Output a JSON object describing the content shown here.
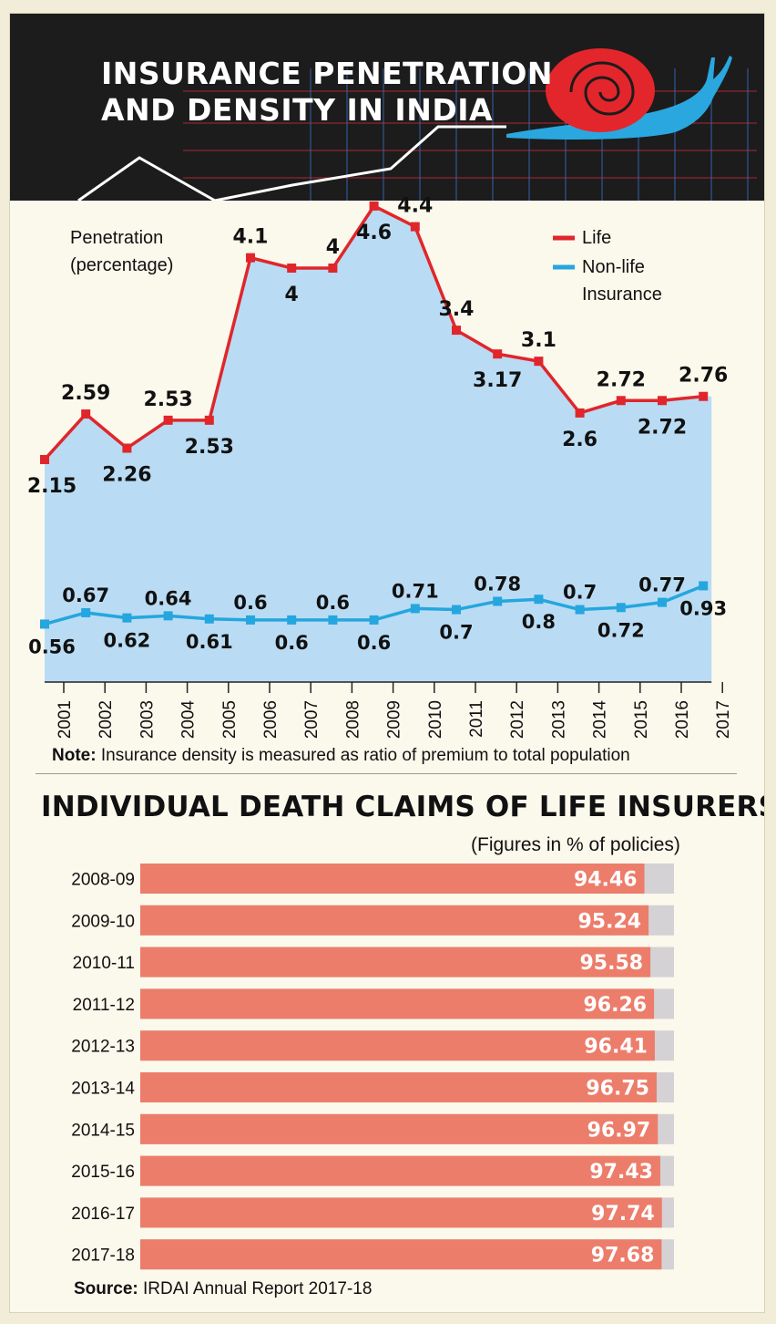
{
  "header": {
    "title_line1": "INSURANCE PENETRATION",
    "title_line2": "AND DENSITY IN INDIA"
  },
  "colors": {
    "life": "#e0262b",
    "nonlife": "#25a6de",
    "area": "#b9dcf4",
    "bar": "#ec7d6a",
    "bar_track": "#d4d2d4",
    "header_bg": "#1c1c1c"
  },
  "chart_data": [
    {
      "type": "line",
      "ylabel": "Penetration (percentage)",
      "legend": [
        "Life",
        "Non-life Insurance"
      ],
      "legend_position": "top-right",
      "x": [
        "2001",
        "2002",
        "2003",
        "2004",
        "2005",
        "2006",
        "2007",
        "2008",
        "2009",
        "2010",
        "2011",
        "2012",
        "2013",
        "2014",
        "2015",
        "2016",
        "2017"
      ],
      "series": [
        {
          "name": "Life",
          "values": [
            2.15,
            2.59,
            2.26,
            2.53,
            2.53,
            4.1,
            4,
            4,
            4.6,
            4.4,
            3.4,
            3.17,
            3.1,
            2.6,
            2.72,
            2.72,
            2.76
          ]
        },
        {
          "name": "Non-life Insurance",
          "values": [
            0.56,
            0.67,
            0.62,
            0.64,
            0.61,
            0.6,
            0.6,
            0.6,
            0.6,
            0.71,
            0.7,
            0.78,
            0.8,
            0.7,
            0.72,
            0.77,
            0.93
          ]
        }
      ],
      "note_label": "Note:",
      "note_text": "Insurance density is measured as ratio of premium to total population"
    },
    {
      "type": "bar",
      "orientation": "horizontal",
      "title": "INDIVIDUAL DEATH CLAIMS OF LIFE INSURERS",
      "unit": "(Figures  in % of policies)",
      "categories": [
        "2008-09",
        "2009-10",
        "2010-11",
        "2011-12",
        "2012-13",
        "2013-14",
        "2014-15",
        "2015-16",
        "2016-17",
        "2017-18"
      ],
      "values": [
        94.46,
        95.24,
        95.58,
        96.26,
        96.41,
        96.75,
        96.97,
        97.43,
        97.74,
        97.68
      ],
      "xlim": [
        0,
        100
      ],
      "source_label": "Source:",
      "source_text": "IRDAI Annual Report 2017-18"
    }
  ]
}
